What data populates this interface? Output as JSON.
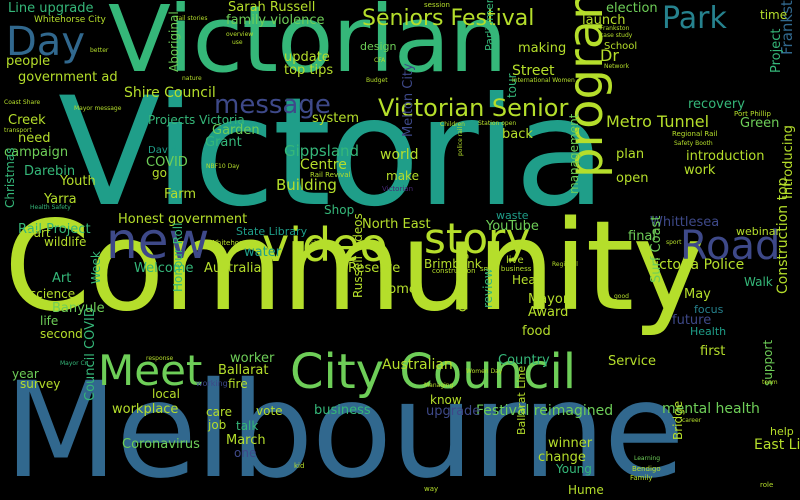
{
  "words": {
    "melbourne": "Melbourne",
    "community": "Community",
    "victoria": "Victoria",
    "victorian": "Victorian",
    "city_council": "City Council",
    "video": "video",
    "new": "new",
    "story": "story",
    "program": "program",
    "road": "Road",
    "meet": "Meet",
    "day": "Day",
    "park": "Park",
    "seniors_festival": "Seniors Festival",
    "victorian_senior": "Victorian Senior",
    "message": "message",
    "metro_tunnel": "Metro Tunnel",
    "gippsland": "Gippsland",
    "victoria_police": "Victoria Police",
    "construction_top": "Construction top",
    "frankston_city": "Frankston City",
    "building": "Building",
    "festival_reimagined": "Festival reimagined",
    "mental_health": "mental health",
    "council_covid": "Council COVID",
    "line_upgrade": "Line upgrade",
    "sarah_russell": "Sarah Russell",
    "family_violence": "family violence",
    "shire_council": "Shire Council",
    "government_ad": "government ad",
    "projects_victoria": "Projects Victoria",
    "honest_government": "Honest government",
    "rail_project": "Rail Project",
    "north_east": "North East",
    "state_library": "State Library",
    "australian": "Australian",
    "east_link": "East Link",
    "coronavirus": "Coronavirus",
    "march": "March",
    "workplace": "workplace",
    "business": "business",
    "upgrade": "upgrade",
    "winner": "winner",
    "change": "change",
    "young": "Young",
    "hume": "Hume",
    "ballarat": "Ballarat",
    "worker": "worker",
    "banyule": "Banyule",
    "science": "science",
    "life": "life",
    "second": "second",
    "art": "Art",
    "welcome": "Welcome",
    "australia": "Australia",
    "water": "water",
    "reserve": "Reserve",
    "home": "home",
    "mayor": "Mayor",
    "award": "Award",
    "food": "food",
    "country": "Country",
    "service": "Service",
    "first": "first",
    "may": "May",
    "future": "future",
    "focus": "focus",
    "health": "Health",
    "walk": "Walk",
    "webinar": "webinar",
    "introducing": "Introducing",
    "final": "final",
    "whittlesea": "Whittlesea",
    "youtube": "YouTube",
    "waste": "waste",
    "shop": "Shop",
    "farm": "Farm",
    "yarra": "Yarra",
    "darebin": "Darebin",
    "campaign": "campaign",
    "need": "need",
    "creek": "Creek",
    "youth": "Youth",
    "covid": "COVID",
    "go": "go",
    "david": "David",
    "grant": "Grant",
    "garden": "Garden",
    "centre": "Centre",
    "system": "system",
    "make": "make",
    "world": "world",
    "back": "back",
    "plan": "plan",
    "work": "work",
    "open": "open",
    "introduction": "introduction",
    "recovery": "recovery",
    "green": "Green",
    "street": "Street",
    "making": "making",
    "dr": "Dr",
    "school": "School",
    "launch": "launch",
    "election": "election",
    "time": "time",
    "update": "update",
    "top_tips": "top tips",
    "people": "people",
    "wildlife": "wildlife",
    "part": "part",
    "christmas": "Christmas",
    "aboriginal": "Aboriginal",
    "melton_city": "Melton City",
    "surf_coast": "Surf Coast",
    "russell_videos": "Russell videos",
    "delivering": "delivering",
    "review": "review",
    "management": "management",
    "brimbank": "Brimbank",
    "head": "Head",
    "live": "live",
    "local": "local",
    "fire": "fire",
    "vote": "vote",
    "care": "care",
    "job": "job",
    "talk": "talk",
    "one": "one",
    "know": "know",
    "year": "year",
    "survey": "survey",
    "honour_roll": "Honour Roll",
    "week": "Week",
    "ballarat_line": "Ballarat Line",
    "bridge": "Bridge",
    "help": "help",
    "support": "support",
    "project": "Project",
    "design": "design",
    "parliament": "Parliament",
    "tour": "tour",
    "whitehorse_city": "Whitehorse City",
    "small1": "small business",
    "small2": "Regional Rail",
    "small3": "Port Phillip",
    "small4": "Rail Revival",
    "small5": "construction",
    "small6": "Whitehorse",
    "small7": "Health Safety",
    "small8": "Mayor Cr",
    "small9": "Bendigo",
    "small10": "Learning",
    "small11": "Managing",
    "small12": "Women Day",
    "small13": "Family",
    "small14": "way",
    "small15": "career",
    "small16": "role",
    "small17": "team",
    "small18": "kid",
    "small19": "session",
    "small20": "Budget",
    "small21": "CFA",
    "small22": "Network",
    "small23": "nature",
    "small24": "overview",
    "small25": "use",
    "small26": "better",
    "small27": "transport",
    "small28": "Coast Share",
    "small29": "Children",
    "small30": "Station open",
    "small31": "Regional",
    "small32": "good",
    "small33": "police rail",
    "small34": "response",
    "small35": "working",
    "small36": "rail stories",
    "small37": "Frankston",
    "small38": "case study",
    "small39": "International Women",
    "small40": "Safety Booth",
    "small41": "NBF10 Day",
    "small42": "Mayor message",
    "small43": "say",
    "small44": "sport",
    "small45": "Victorian"
  },
  "colors": {
    "background": "#000000",
    "lime": "#b5de2b",
    "green": "#6ece58",
    "teal": "#1f9e89",
    "blue": "#31688e",
    "navy": "#3e4989",
    "purple": "#482878",
    "dark": "#440154",
    "cyan": "#26828e",
    "mint": "#35b779"
  }
}
